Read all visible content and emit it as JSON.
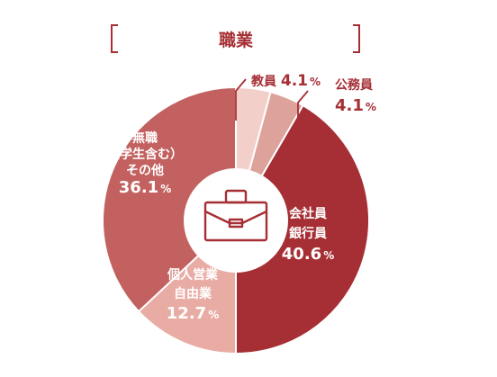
{
  "chart_data": {
    "type": "pie",
    "donut": true,
    "title": "職業",
    "center_icon": "briefcase-icon",
    "slices": [
      {
        "lines": [
          "教員"
        ],
        "value": 4.1,
        "value_text": "4.1",
        "unit": "%",
        "color": "#f2cfc9"
      },
      {
        "lines": [
          "公務員"
        ],
        "value": 4.1,
        "value_text": "4.1",
        "unit": "%",
        "color": "#dda39b"
      },
      {
        "lines": [
          "会社員",
          "銀行員"
        ],
        "value": 40.6,
        "value_text": "40.6",
        "unit": "%",
        "color": "#a62f35"
      },
      {
        "lines": [
          "個人営業",
          "自由業"
        ],
        "value": 12.7,
        "value_text": "12.7",
        "unit": "%",
        "color": "#e9aca4"
      },
      {
        "lines": [
          "無職",
          "（学生含む）",
          "その他"
        ],
        "value": 36.1,
        "value_text": "36.1",
        "unit": "%",
        "color": "#c2615f"
      }
    ],
    "label_color": "#a62f35",
    "label_color_on_dark": "#ffffff",
    "bracket_color": "#a62f35"
  }
}
